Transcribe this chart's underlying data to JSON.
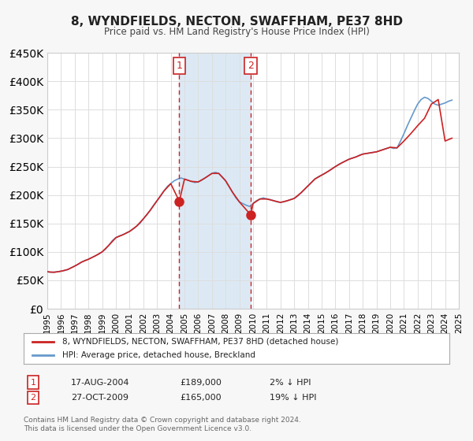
{
  "title": "8, WYNDFIELDS, NECTON, SWAFFHAM, PE37 8HD",
  "subtitle": "Price paid vs. HM Land Registry's House Price Index (HPI)",
  "xlabel": "",
  "ylabel": "",
  "ylim": [
    0,
    450000
  ],
  "yticks": [
    0,
    50000,
    100000,
    150000,
    200000,
    250000,
    300000,
    350000,
    400000,
    450000
  ],
  "ytick_labels": [
    "£0",
    "£50K",
    "£100K",
    "£150K",
    "£200K",
    "£250K",
    "£300K",
    "£350K",
    "£400K",
    "£450K"
  ],
  "xlim_start": 1995,
  "xlim_end": 2025,
  "sale1_date": 2004.625,
  "sale1_price": 189000,
  "sale1_label": "17-AUG-2004",
  "sale1_price_str": "£189,000",
  "sale1_hpi_str": "2% ↓ HPI",
  "sale2_date": 2009.833,
  "sale2_price": 165000,
  "sale2_label": "27-OCT-2009",
  "sale2_price_str": "£165,000",
  "sale2_hpi_str": "19% ↓ HPI",
  "hpi_color": "#6699cc",
  "sale_color": "#cc2222",
  "bg_color": "#f7f7f7",
  "plot_bg_color": "#ffffff",
  "shade_color": "#dce9f5",
  "grid_color": "#dddddd",
  "legend_label_sale": "8, WYNDFIELDS, NECTON, SWAFFHAM, PE37 8HD (detached house)",
  "legend_label_hpi": "HPI: Average price, detached house, Breckland",
  "footnote": "Contains HM Land Registry data © Crown copyright and database right 2024.\nThis data is licensed under the Open Government Licence v3.0.",
  "hpi_data_x": [
    1995.0,
    1995.25,
    1995.5,
    1995.75,
    1996.0,
    1996.25,
    1996.5,
    1996.75,
    1997.0,
    1997.25,
    1997.5,
    1997.75,
    1998.0,
    1998.25,
    1998.5,
    1998.75,
    1999.0,
    1999.25,
    1999.5,
    1999.75,
    2000.0,
    2000.25,
    2000.5,
    2000.75,
    2001.0,
    2001.25,
    2001.5,
    2001.75,
    2002.0,
    2002.25,
    2002.5,
    2002.75,
    2003.0,
    2003.25,
    2003.5,
    2003.75,
    2004.0,
    2004.25,
    2004.5,
    2004.75,
    2005.0,
    2005.25,
    2005.5,
    2005.75,
    2006.0,
    2006.25,
    2006.5,
    2006.75,
    2007.0,
    2007.25,
    2007.5,
    2007.75,
    2008.0,
    2008.25,
    2008.5,
    2008.75,
    2009.0,
    2009.25,
    2009.5,
    2009.75,
    2010.0,
    2010.25,
    2010.5,
    2010.75,
    2011.0,
    2011.25,
    2011.5,
    2011.75,
    2012.0,
    2012.25,
    2012.5,
    2012.75,
    2013.0,
    2013.25,
    2013.5,
    2013.75,
    2014.0,
    2014.25,
    2014.5,
    2014.75,
    2015.0,
    2015.25,
    2015.5,
    2015.75,
    2016.0,
    2016.25,
    2016.5,
    2016.75,
    2017.0,
    2017.25,
    2017.5,
    2017.75,
    2018.0,
    2018.25,
    2018.5,
    2018.75,
    2019.0,
    2019.25,
    2019.5,
    2019.75,
    2020.0,
    2020.25,
    2020.5,
    2020.75,
    2021.0,
    2021.25,
    2021.5,
    2021.75,
    2022.0,
    2022.25,
    2022.5,
    2022.75,
    2023.0,
    2023.25,
    2023.5,
    2023.75,
    2024.0,
    2024.25,
    2024.5
  ],
  "hpi_data_y": [
    65000,
    64000,
    64500,
    65000,
    66000,
    67000,
    69000,
    72000,
    75000,
    78000,
    82000,
    85000,
    87000,
    90000,
    93000,
    96000,
    100000,
    105000,
    112000,
    120000,
    125000,
    128000,
    130000,
    133000,
    136000,
    140000,
    145000,
    150000,
    158000,
    165000,
    173000,
    182000,
    190000,
    198000,
    207000,
    215000,
    220000,
    225000,
    228000,
    230000,
    228000,
    226000,
    224000,
    222000,
    223000,
    226000,
    230000,
    234000,
    238000,
    240000,
    238000,
    232000,
    225000,
    215000,
    205000,
    195000,
    188000,
    185000,
    182000,
    180000,
    185000,
    190000,
    193000,
    195000,
    193000,
    192000,
    190000,
    188000,
    187000,
    188000,
    190000,
    192000,
    194000,
    198000,
    204000,
    210000,
    216000,
    222000,
    228000,
    232000,
    235000,
    238000,
    242000,
    246000,
    250000,
    254000,
    257000,
    260000,
    263000,
    265000,
    267000,
    270000,
    272000,
    273000,
    274000,
    275000,
    276000,
    278000,
    280000,
    282000,
    284000,
    282000,
    283000,
    295000,
    308000,
    322000,
    335000,
    348000,
    360000,
    368000,
    372000,
    370000,
    365000,
    360000,
    358000,
    360000,
    362000,
    365000,
    367000
  ],
  "sale_data_x": [
    1995.0,
    1995.5,
    1996.0,
    1996.5,
    1997.0,
    1997.5,
    1998.0,
    1998.5,
    1999.0,
    1999.5,
    2000.0,
    2000.5,
    2001.0,
    2001.5,
    2002.0,
    2002.5,
    2003.0,
    2003.5,
    2004.0,
    2004.625,
    2005.0,
    2005.5,
    2006.0,
    2006.5,
    2007.0,
    2007.5,
    2008.0,
    2008.5,
    2009.0,
    2009.833,
    2010.0,
    2010.5,
    2011.0,
    2011.5,
    2012.0,
    2012.5,
    2013.0,
    2013.5,
    2014.0,
    2014.5,
    2015.0,
    2015.5,
    2016.0,
    2016.5,
    2017.0,
    2017.5,
    2018.0,
    2018.5,
    2019.0,
    2019.5,
    2020.0,
    2020.5,
    2021.0,
    2021.5,
    2022.0,
    2022.5,
    2023.0,
    2023.5,
    2024.0,
    2024.5
  ],
  "sale_data_y": [
    65000,
    64000,
    66000,
    69000,
    75000,
    82000,
    87000,
    93000,
    100000,
    112000,
    125000,
    130000,
    136000,
    145000,
    158000,
    173000,
    190000,
    207000,
    220000,
    189000,
    228000,
    224000,
    223000,
    230000,
    238000,
    238000,
    225000,
    205000,
    188000,
    165000,
    185000,
    193000,
    193000,
    190000,
    187000,
    190000,
    194000,
    204000,
    216000,
    228000,
    235000,
    242000,
    250000,
    257000,
    263000,
    267000,
    272000,
    274000,
    276000,
    280000,
    284000,
    283000,
    295000,
    308000,
    322000,
    335000,
    360000,
    368000,
    295000,
    300000
  ]
}
